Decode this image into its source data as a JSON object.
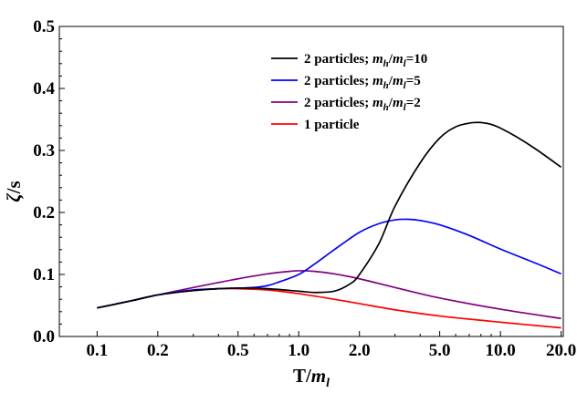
{
  "chart_data": {
    "type": "line",
    "title": "",
    "xscale": "log",
    "xlim": [
      0.065,
      20.5
    ],
    "ylim": [
      0.0,
      0.5
    ],
    "xticks": [
      0.1,
      0.2,
      0.5,
      1.0,
      2.0,
      5.0,
      10.0,
      20.0
    ],
    "xtick_labels": [
      "0.1",
      "0.2",
      "0.5",
      "1.0",
      "2.0",
      "5.0",
      "10.0",
      "20.0"
    ],
    "yticks": [
      0.0,
      0.1,
      0.2,
      0.3,
      0.4,
      0.5
    ],
    "ytick_labels": [
      "0.0",
      "0.1",
      "0.2",
      "0.3",
      "0.4",
      "0.5"
    ],
    "xlabel": {
      "base": "T/",
      "italic": "m",
      "sub": "l"
    },
    "ylabel": {
      "italic": "ζ",
      "rest": "/s"
    },
    "legend_position": "top-center",
    "series": [
      {
        "name": "2 particles; m_h/m_l=10",
        "label_parts": {
          "prefix": "2 particles; ",
          "m1": "m",
          "s1": "h",
          "slash": "/",
          "m2": "m",
          "s2": "l",
          "suffix": "=10"
        },
        "color": "#000000",
        "x": [
          0.1,
          0.15,
          0.2,
          0.3,
          0.4,
          0.5,
          0.7,
          1.0,
          1.2,
          1.5,
          1.8,
          2.0,
          2.5,
          3.0,
          4.0,
          5.0,
          6.0,
          7.0,
          7.5,
          8.0,
          9.0,
          10.0,
          12.0,
          15.0,
          20.0
        ],
        "y": [
          0.046,
          0.058,
          0.067,
          0.074,
          0.077,
          0.078,
          0.077,
          0.073,
          0.071,
          0.073,
          0.085,
          0.1,
          0.15,
          0.21,
          0.28,
          0.32,
          0.338,
          0.344,
          0.345,
          0.345,
          0.342,
          0.336,
          0.322,
          0.302,
          0.273
        ]
      },
      {
        "name": "2 particles; m_h/m_l=5",
        "label_parts": {
          "prefix": "2 particles; ",
          "m1": "m",
          "s1": "h",
          "slash": "/",
          "m2": "m",
          "s2": "l",
          "suffix": "=5"
        },
        "color": "#0000ff",
        "x": [
          0.1,
          0.15,
          0.2,
          0.3,
          0.4,
          0.5,
          0.6,
          0.7,
          0.8,
          1.0,
          1.2,
          1.5,
          2.0,
          2.5,
          3.0,
          3.5,
          4.0,
          5.0,
          7.0,
          10.0,
          15.0,
          20.0
        ],
        "y": [
          0.046,
          0.058,
          0.067,
          0.075,
          0.077,
          0.078,
          0.079,
          0.082,
          0.088,
          0.1,
          0.117,
          0.14,
          0.168,
          0.182,
          0.188,
          0.189,
          0.187,
          0.18,
          0.163,
          0.141,
          0.118,
          0.101
        ]
      },
      {
        "name": "2 particles; m_h/m_l=2",
        "label_parts": {
          "prefix": "2 particles; ",
          "m1": "m",
          "s1": "h",
          "slash": "/",
          "m2": "m",
          "s2": "l",
          "suffix": "=2"
        },
        "color": "#800080",
        "x": [
          0.1,
          0.15,
          0.2,
          0.3,
          0.4,
          0.5,
          0.7,
          0.9,
          1.0,
          1.2,
          1.5,
          2.0,
          3.0,
          5.0,
          10.0,
          20.0
        ],
        "y": [
          0.046,
          0.058,
          0.067,
          0.079,
          0.087,
          0.093,
          0.101,
          0.105,
          0.106,
          0.105,
          0.101,
          0.093,
          0.079,
          0.062,
          0.044,
          0.029
        ]
      },
      {
        "name": "1 particle",
        "label_parts": {
          "prefix": "1 particle",
          "m1": "",
          "s1": "",
          "slash": "",
          "m2": "",
          "s2": "",
          "suffix": ""
        },
        "color": "#ff0000",
        "x": [
          0.1,
          0.15,
          0.2,
          0.3,
          0.4,
          0.5,
          0.7,
          1.0,
          1.5,
          2.0,
          3.0,
          5.0,
          10.0,
          20.0
        ],
        "y": [
          0.046,
          0.058,
          0.067,
          0.074,
          0.077,
          0.077,
          0.075,
          0.069,
          0.06,
          0.053,
          0.043,
          0.033,
          0.023,
          0.014
        ]
      }
    ]
  }
}
